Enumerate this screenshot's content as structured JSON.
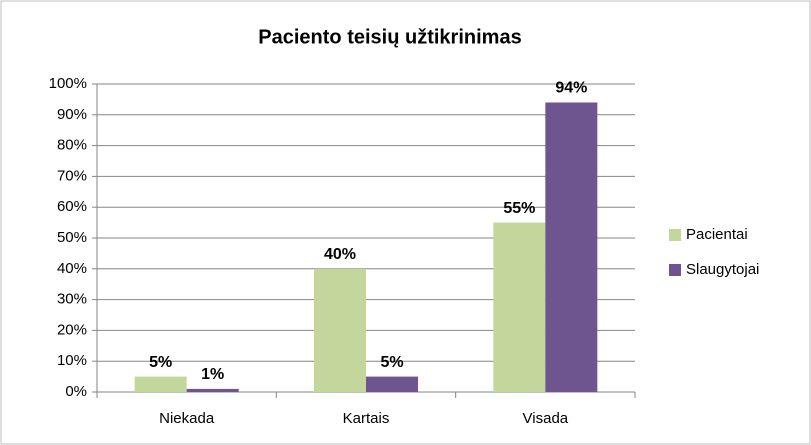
{
  "chart_data": {
    "type": "bar",
    "title": "Paciento teisių užtikrinimas",
    "categories": [
      "Niekada",
      "Kartais",
      "Visada"
    ],
    "series": [
      {
        "name": "Pacientai",
        "color": "#c3d69b",
        "values": [
          5,
          40,
          55
        ],
        "value_labels": [
          "5%",
          "40%",
          "55%"
        ]
      },
      {
        "name": "Slaugytojai",
        "color": "#6f5590",
        "values": [
          1,
          5,
          94
        ],
        "value_labels": [
          "1%",
          "5%",
          "94%"
        ]
      }
    ],
    "ylim": [
      0,
      100
    ],
    "yticks": [
      {
        "value": 0,
        "label": "0%"
      },
      {
        "value": 10,
        "label": "10%"
      },
      {
        "value": 20,
        "label": "20%"
      },
      {
        "value": 30,
        "label": "30%"
      },
      {
        "value": 40,
        "label": "40%"
      },
      {
        "value": 50,
        "label": "50%"
      },
      {
        "value": 60,
        "label": "60%"
      },
      {
        "value": 70,
        "label": "70%"
      },
      {
        "value": 80,
        "label": "80%"
      },
      {
        "value": 90,
        "label": "90%"
      },
      {
        "value": 100,
        "label": "100%"
      }
    ],
    "grid": true,
    "legend": "right"
  }
}
